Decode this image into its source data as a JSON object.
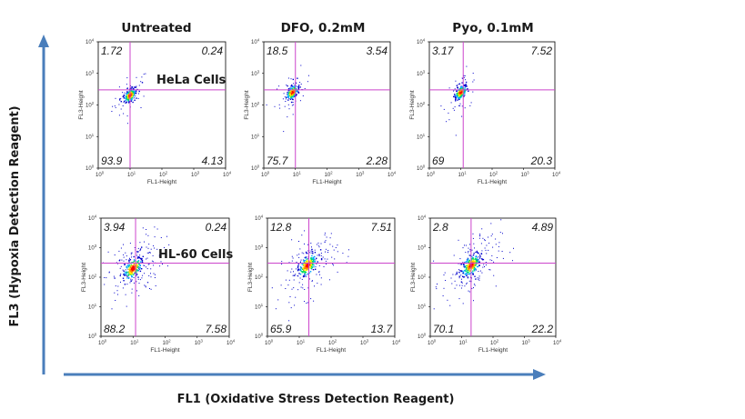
{
  "chart_data": {
    "type": "scatter",
    "layout": "grid of flow cytometry density dot plots with quadrant gates",
    "rows": [
      "HeLa Cells",
      "HL-60 Cells"
    ],
    "columns": [
      "Untreated",
      "DFO, 0.2mM",
      "Pyo, 0.1mM"
    ],
    "xlabel": "FL1 (Oxidative Stress Detection Reagent)",
    "ylabel": "FL3 (Hypoxia Detection Reagent)",
    "plot_xlabel": "FL1-Height",
    "plot_ylabel": "FL3-Height",
    "xscale": "log",
    "yscale": "log",
    "xlim": [
      1,
      10000
    ],
    "ylim": [
      1,
      10000
    ],
    "tick_base": "10",
    "tick_exponents": [
      "0",
      "1",
      "2",
      "3",
      "4"
    ],
    "quadrant_gate_color": "#cc44cc",
    "density_colors": [
      "#0000cc",
      "#00aaff",
      "#00dd66",
      "#ffee00",
      "#ff8800",
      "#ff0000"
    ],
    "panels": [
      {
        "row": "HeLa Cells",
        "column": "Untreated",
        "quadrants": {
          "upper_left": "1.72",
          "upper_right": "0.24",
          "lower_left": "93.9",
          "lower_right": "4.13"
        },
        "gate": {
          "x": 10,
          "y": 300
        },
        "center": {
          "x": 10,
          "y": 200
        },
        "spread": "tight"
      },
      {
        "row": "HeLa Cells",
        "column": "DFO, 0.2mM",
        "quadrants": {
          "upper_left": "18.5",
          "upper_right": "3.54",
          "lower_left": "75.7",
          "lower_right": "2.28"
        },
        "gate": {
          "x": 10,
          "y": 300
        },
        "center": {
          "x": 8,
          "y": 250
        },
        "spread": "tight"
      },
      {
        "row": "HeLa Cells",
        "column": "Pyo, 0.1mM",
        "quadrants": {
          "upper_left": "3.17",
          "upper_right": "7.52",
          "lower_left": "69",
          "lower_right": "20.3"
        },
        "gate": {
          "x": 12,
          "y": 300
        },
        "center": {
          "x": 10,
          "y": 250
        },
        "spread": "tight"
      },
      {
        "row": "HL-60 Cells",
        "column": "Untreated",
        "quadrants": {
          "upper_left": "3.94",
          "upper_right": "0.24",
          "lower_left": "88.2",
          "lower_right": "7.58"
        },
        "gate": {
          "x": 12,
          "y": 300
        },
        "center": {
          "x": 10,
          "y": 200
        },
        "spread": "wide"
      },
      {
        "row": "HL-60 Cells",
        "column": "DFO, 0.2mM",
        "quadrants": {
          "upper_left": "12.8",
          "upper_right": "7.51",
          "lower_left": "65.9",
          "lower_right": "13.7"
        },
        "gate": {
          "x": 20,
          "y": 300
        },
        "center": {
          "x": 18,
          "y": 250
        },
        "spread": "wide"
      },
      {
        "row": "HL-60 Cells",
        "column": "Pyo, 0.1mM",
        "quadrants": {
          "upper_left": "2.8",
          "upper_right": "4.89",
          "lower_left": "70.1",
          "lower_right": "22.2"
        },
        "gate": {
          "x": 20,
          "y": 300
        },
        "center": {
          "x": 20,
          "y": 250
        },
        "spread": "wide"
      }
    ]
  }
}
